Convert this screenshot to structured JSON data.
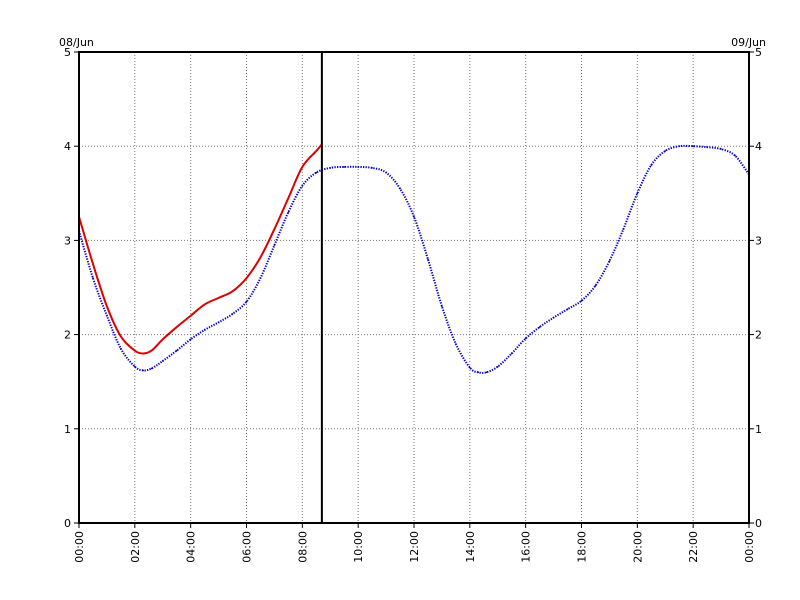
{
  "chart_data": {
    "type": "line",
    "date_left": "08/Jun",
    "date_right": "09/Jun",
    "x_tick_labels": [
      "00:00",
      "02:00",
      "04:00",
      "06:00",
      "08:00",
      "10:00",
      "12:00",
      "14:00",
      "16:00",
      "18:00",
      "20:00",
      "22:00",
      "00:00"
    ],
    "y_tick_labels": [
      "0",
      "1",
      "2",
      "3",
      "4",
      "5"
    ],
    "xlim": [
      0,
      24
    ],
    "ylim": [
      0,
      5
    ],
    "grid": true,
    "current_time_marker": 8.7,
    "series": [
      {
        "color": "#0000cc",
        "style": "dotted",
        "x": [
          0,
          0.5,
          1,
          1.5,
          2,
          2.3,
          2.6,
          3,
          3.5,
          4,
          4.5,
          5,
          5.5,
          6,
          6.5,
          7,
          7.5,
          8,
          8.5,
          9,
          9.5,
          10,
          10.5,
          11,
          11.5,
          12,
          12.5,
          13,
          13.5,
          14,
          14.3,
          14.6,
          15,
          15.5,
          16,
          16.5,
          17,
          17.5,
          18,
          18.5,
          19,
          19.5,
          20,
          20.5,
          21,
          21.5,
          22,
          22.5,
          23,
          23.5,
          24
        ],
        "y": [
          3.1,
          2.6,
          2.2,
          1.85,
          1.66,
          1.62,
          1.64,
          1.72,
          1.83,
          1.95,
          2.05,
          2.13,
          2.22,
          2.35,
          2.6,
          2.95,
          3.3,
          3.58,
          3.72,
          3.77,
          3.78,
          3.78,
          3.77,
          3.72,
          3.55,
          3.25,
          2.8,
          2.3,
          1.9,
          1.65,
          1.6,
          1.6,
          1.66,
          1.8,
          1.96,
          2.08,
          2.18,
          2.27,
          2.36,
          2.52,
          2.78,
          3.12,
          3.5,
          3.8,
          3.95,
          4.0,
          4.0,
          3.99,
          3.97,
          3.9,
          3.7
        ]
      },
      {
        "color": "#dd0000",
        "style": "solid",
        "x": [
          0,
          0.5,
          1,
          1.5,
          2,
          2.3,
          2.6,
          3,
          3.5,
          4,
          4.5,
          5,
          5.5,
          6,
          6.5,
          7,
          7.5,
          8,
          8.5,
          8.7
        ],
        "y": [
          3.25,
          2.75,
          2.3,
          1.98,
          1.83,
          1.8,
          1.83,
          1.95,
          2.08,
          2.2,
          2.32,
          2.39,
          2.46,
          2.6,
          2.82,
          3.12,
          3.45,
          3.78,
          3.95,
          4.02
        ]
      }
    ]
  }
}
